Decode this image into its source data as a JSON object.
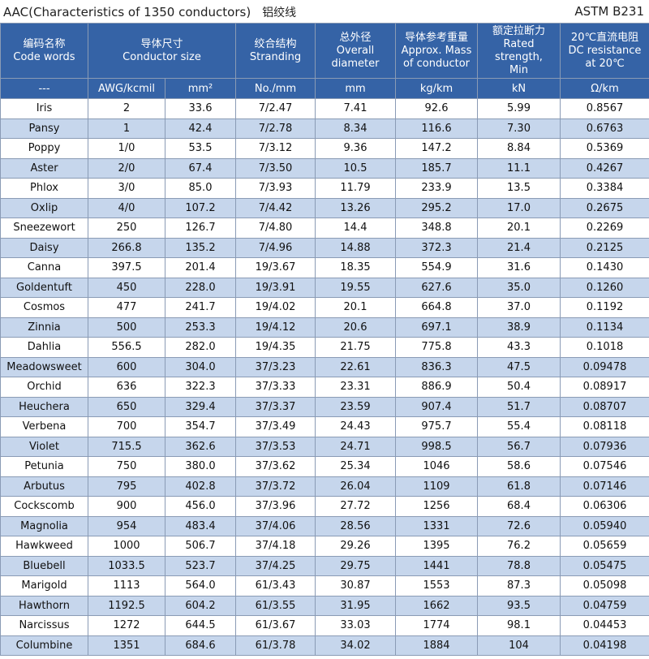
{
  "header": {
    "title": "AAC(Characteristics of 1350 conductors)",
    "title_cn": "铝绞线",
    "standard": "ASTM B231"
  },
  "table": {
    "headers": [
      [
        "编码名称",
        "Code words"
      ],
      [
        "导体尺寸",
        "Conductor size"
      ],
      [
        "绞合结构",
        "Stranding"
      ],
      [
        "总外径",
        "Overall",
        "diameter"
      ],
      [
        "导体参考重量",
        "Approx. Mass",
        "of conductor"
      ],
      [
        "额定拉断力",
        "Rated",
        "strength,",
        "Min"
      ],
      [
        "20℃直流电阻",
        "DC resistance",
        "at 20℃"
      ]
    ],
    "units": [
      "---",
      "AWG/kcmil",
      "mm²",
      "No./mm",
      "mm",
      "kg/km",
      "kN",
      "Ω/km"
    ],
    "rows": [
      [
        "Iris",
        "2",
        "33.6",
        "7/2.47",
        "7.41",
        "92.6",
        "5.99",
        "0.8567"
      ],
      [
        "Pansy",
        "1",
        "42.4",
        "7/2.78",
        "8.34",
        "116.6",
        "7.30",
        "0.6763"
      ],
      [
        "Poppy",
        "1/0",
        "53.5",
        "7/3.12",
        "9.36",
        "147.2",
        "8.84",
        "0.5369"
      ],
      [
        "Aster",
        "2/0",
        "67.4",
        "7/3.50",
        "10.5",
        "185.7",
        "11.1",
        "0.4267"
      ],
      [
        "Phlox",
        "3/0",
        "85.0",
        "7/3.93",
        "11.79",
        "233.9",
        "13.5",
        "0.3384"
      ],
      [
        "Oxlip",
        "4/0",
        "107.2",
        "7/4.42",
        "13.26",
        "295.2",
        "17.0",
        "0.2675"
      ],
      [
        "Sneezewort",
        "250",
        "126.7",
        "7/4.80",
        "14.4",
        "348.8",
        "20.1",
        "0.2269"
      ],
      [
        "Daisy",
        "266.8",
        "135.2",
        "7/4.96",
        "14.88",
        "372.3",
        "21.4",
        "0.2125"
      ],
      [
        "Canna",
        "397.5",
        "201.4",
        "19/3.67",
        "18.35",
        "554.9",
        "31.6",
        "0.1430"
      ],
      [
        "Goldentuft",
        "450",
        "228.0",
        "19/3.91",
        "19.55",
        "627.6",
        "35.0",
        "0.1260"
      ],
      [
        "Cosmos",
        "477",
        "241.7",
        "19/4.02",
        "20.1",
        "664.8",
        "37.0",
        "0.1192"
      ],
      [
        "Zinnia",
        "500",
        "253.3",
        "19/4.12",
        "20.6",
        "697.1",
        "38.9",
        "0.1134"
      ],
      [
        "Dahlia",
        "556.5",
        "282.0",
        "19/4.35",
        "21.75",
        "775.8",
        "43.3",
        "0.1018"
      ],
      [
        "Meadowsweet",
        "600",
        "304.0",
        "37/3.23",
        "22.61",
        "836.3",
        "47.5",
        "0.09478"
      ],
      [
        "Orchid",
        "636",
        "322.3",
        "37/3.33",
        "23.31",
        "886.9",
        "50.4",
        "0.08917"
      ],
      [
        "Heuchera",
        "650",
        "329.4",
        "37/3.37",
        "23.59",
        "907.4",
        "51.7",
        "0.08707"
      ],
      [
        "Verbena",
        "700",
        "354.7",
        "37/3.49",
        "24.43",
        "975.7",
        "55.4",
        "0.08118"
      ],
      [
        "Violet",
        "715.5",
        "362.6",
        "37/3.53",
        "24.71",
        "998.5",
        "56.7",
        "0.07936"
      ],
      [
        "Petunia",
        "750",
        "380.0",
        "37/3.62",
        "25.34",
        "1046",
        "58.6",
        "0.07546"
      ],
      [
        "Arbutus",
        "795",
        "402.8",
        "37/3.72",
        "26.04",
        "1109",
        "61.8",
        "0.07146"
      ],
      [
        "Cockscomb",
        "900",
        "456.0",
        "37/3.96",
        "27.72",
        "1256",
        "68.4",
        "0.06306"
      ],
      [
        "Magnolia",
        "954",
        "483.4",
        "37/4.06",
        "28.56",
        "1331",
        "72.6",
        "0.05940"
      ],
      [
        "Hawkweed",
        "1000",
        "506.7",
        "37/4.18",
        "29.26",
        "1395",
        "76.2",
        "0.05659"
      ],
      [
        "Bluebell",
        "1033.5",
        "523.7",
        "37/4.25",
        "29.75",
        "1441",
        "78.8",
        "0.05475"
      ],
      [
        "Marigold",
        "1113",
        "564.0",
        "61/3.43",
        "30.87",
        "1553",
        "87.3",
        "0.05098"
      ],
      [
        "Hawthorn",
        "1192.5",
        "604.2",
        "61/3.55",
        "31.95",
        "1662",
        "93.5",
        "0.04759"
      ],
      [
        "Narcissus",
        "1272",
        "644.5",
        "61/3.67",
        "33.03",
        "1774",
        "98.1",
        "0.04453"
      ],
      [
        "Columbine",
        "1351",
        "684.6",
        "61/3.78",
        "34.02",
        "1884",
        "104",
        "0.04198"
      ]
    ]
  }
}
